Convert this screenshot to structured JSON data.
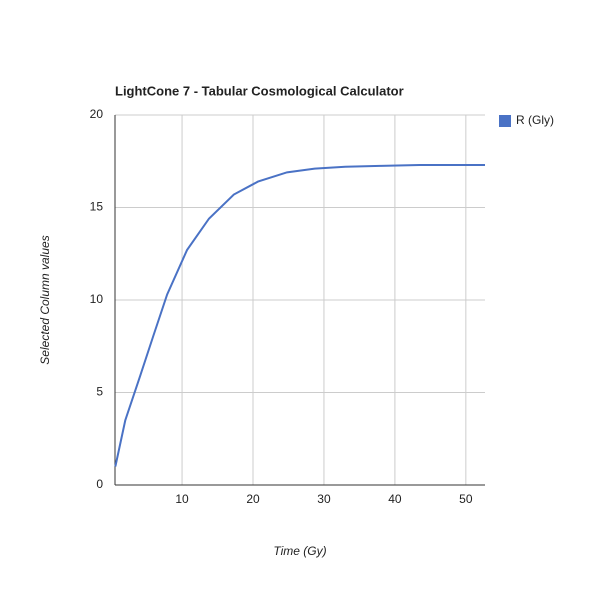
{
  "chart_data": {
    "type": "line",
    "title": "LightCone 7 - Tabular Cosmological Calculator",
    "x_label": "Time (Gy)",
    "y_label": "Selected Column values",
    "x": [
      0.6,
      2.0,
      4.1,
      5.9,
      7.9,
      10.7,
      13.8,
      17.3,
      20.7,
      24.8,
      28.7,
      33.0,
      37.9,
      43.5,
      52.7
    ],
    "series": [
      {
        "name": "R (Gly)",
        "color": "#4a72c5",
        "values": [
          1.0,
          3.5,
          5.9,
          8.0,
          10.3,
          12.7,
          14.4,
          15.7,
          16.4,
          16.9,
          17.1,
          17.2,
          17.25,
          17.3,
          17.3
        ]
      }
    ],
    "xlim": [
      0.55,
      52.7
    ],
    "xticks": [
      10,
      20,
      30,
      40,
      50
    ],
    "ylim": [
      0,
      20
    ],
    "yticks": [
      0,
      5,
      10,
      15,
      20
    ],
    "grid": true,
    "legend": "right"
  }
}
